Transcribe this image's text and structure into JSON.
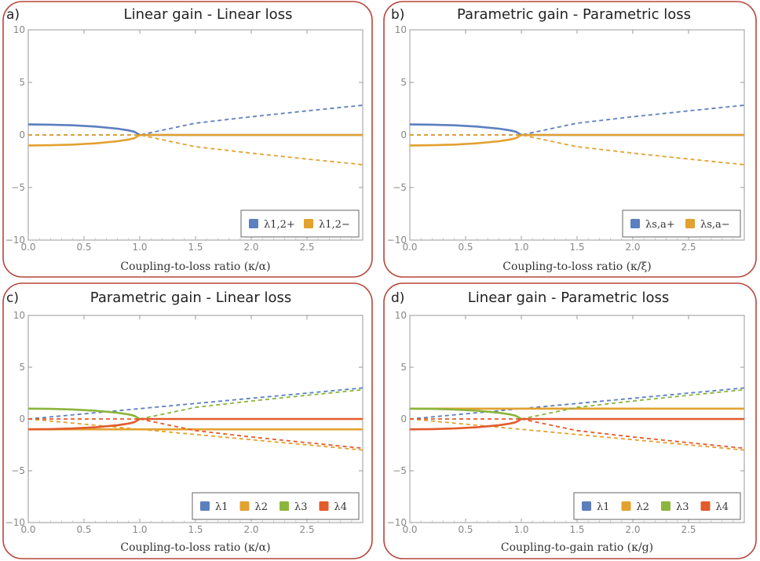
{
  "colors": {
    "blue": "#5b7fbf",
    "orange": "#e3a12f",
    "green": "#8bb53c",
    "red": "#e25b2c",
    "frame": "#b5473a"
  },
  "chart_data": [
    {
      "type": "line",
      "panel_label": "a)",
      "title": "Linear gain - Linear loss",
      "xlabel": "Coupling-to-loss ratio (κ/α)",
      "ylabel": "",
      "xlim": [
        0,
        3
      ],
      "ylim": [
        -10,
        10
      ],
      "x_ticks": [
        0,
        0.5,
        1,
        1.5,
        2,
        2.5
      ],
      "x_tick_labels": [
        "0.0",
        "0.5",
        "1.0",
        "1.5",
        "2.0",
        "2.5"
      ],
      "y_ticks": [
        -10,
        -5,
        0,
        5,
        10
      ],
      "y_tick_labels": [
        "−10",
        "−5",
        "0",
        "5",
        "10"
      ],
      "legend": {
        "position": "bottom-right",
        "entries": [
          {
            "label": "λ1,2+",
            "color": "blue"
          },
          {
            "label": "λ1,2−",
            "color": "orange"
          }
        ]
      },
      "series": [
        {
          "name": "λ1,2+",
          "color": "blue",
          "style": "solid",
          "points": [
            [
              0,
              1.0
            ],
            [
              0.2,
              0.98
            ],
            [
              0.4,
              0.917
            ],
            [
              0.6,
              0.8
            ],
            [
              0.8,
              0.6
            ],
            [
              0.9,
              0.436
            ],
            [
              0.95,
              0.312
            ],
            [
              1.0,
              0
            ]
          ]
        },
        {
          "name": "λ1,2+",
          "color": "blue",
          "style": "dashed",
          "points": [
            [
              0,
              0
            ],
            [
              1.0,
              0
            ],
            [
              1.5,
              1.118
            ],
            [
              2.0,
              1.732
            ],
            [
              2.5,
              2.291
            ],
            [
              3.0,
              2.828
            ]
          ]
        },
        {
          "name": "λ1,2+",
          "color": "blue",
          "style": "solid",
          "points": [
            [
              1.0,
              0
            ],
            [
              3.0,
              0
            ]
          ]
        },
        {
          "name": "λ1,2−",
          "color": "orange",
          "style": "solid",
          "points": [
            [
              0,
              -1.0
            ],
            [
              0.2,
              -0.98
            ],
            [
              0.4,
              -0.917
            ],
            [
              0.6,
              -0.8
            ],
            [
              0.8,
              -0.6
            ],
            [
              0.9,
              -0.436
            ],
            [
              0.95,
              -0.312
            ],
            [
              1.0,
              0
            ]
          ]
        },
        {
          "name": "λ1,2−",
          "color": "orange",
          "style": "dashed",
          "points": [
            [
              0,
              0
            ],
            [
              1.0,
              0
            ],
            [
              1.5,
              -1.118
            ],
            [
              2.0,
              -1.732
            ],
            [
              2.5,
              -2.291
            ],
            [
              3.0,
              -2.828
            ]
          ]
        },
        {
          "name": "λ1,2−",
          "color": "orange",
          "style": "solid",
          "points": [
            [
              1.0,
              0
            ],
            [
              3.0,
              0
            ]
          ]
        }
      ]
    },
    {
      "type": "line",
      "panel_label": "b)",
      "title": "Parametric gain - Parametric loss",
      "xlabel": "Coupling-to-loss ratio (κ/ξ)",
      "ylabel": "",
      "xlim": [
        0,
        3
      ],
      "ylim": [
        -10,
        10
      ],
      "x_ticks": [
        0,
        0.5,
        1,
        1.5,
        2,
        2.5
      ],
      "x_tick_labels": [
        "0.0",
        "0.5",
        "1.0",
        "1.5",
        "2.0",
        "2.5"
      ],
      "y_ticks": [
        -10,
        -5,
        0,
        5,
        10
      ],
      "y_tick_labels": [
        "−10",
        "−5",
        "0",
        "5",
        "10"
      ],
      "legend": {
        "position": "bottom-right",
        "entries": [
          {
            "label": "λs,a+",
            "color": "blue"
          },
          {
            "label": "λs,a−",
            "color": "orange"
          }
        ]
      },
      "series": [
        {
          "name": "λs,a+",
          "color": "blue",
          "style": "solid",
          "points": [
            [
              0,
              1.0
            ],
            [
              0.2,
              0.98
            ],
            [
              0.4,
              0.917
            ],
            [
              0.6,
              0.8
            ],
            [
              0.8,
              0.6
            ],
            [
              0.9,
              0.436
            ],
            [
              0.95,
              0.312
            ],
            [
              1.0,
              0
            ]
          ]
        },
        {
          "name": "λs,a+",
          "color": "blue",
          "style": "dashed",
          "points": [
            [
              0,
              0
            ],
            [
              1.0,
              0
            ],
            [
              1.5,
              1.118
            ],
            [
              2.0,
              1.732
            ],
            [
              2.5,
              2.291
            ],
            [
              3.0,
              2.828
            ]
          ]
        },
        {
          "name": "λs,a+",
          "color": "blue",
          "style": "solid",
          "points": [
            [
              1.0,
              0
            ],
            [
              3.0,
              0
            ]
          ]
        },
        {
          "name": "λs,a−",
          "color": "orange",
          "style": "solid",
          "points": [
            [
              0,
              -1.0
            ],
            [
              0.2,
              -0.98
            ],
            [
              0.4,
              -0.917
            ],
            [
              0.6,
              -0.8
            ],
            [
              0.8,
              -0.6
            ],
            [
              0.9,
              -0.436
            ],
            [
              0.95,
              -0.312
            ],
            [
              1.0,
              0
            ]
          ]
        },
        {
          "name": "λs,a−",
          "color": "orange",
          "style": "dashed",
          "points": [
            [
              0,
              0
            ],
            [
              1.0,
              0
            ],
            [
              1.5,
              -1.118
            ],
            [
              2.0,
              -1.732
            ],
            [
              2.5,
              -2.291
            ],
            [
              3.0,
              -2.828
            ]
          ]
        },
        {
          "name": "λs,a−",
          "color": "orange",
          "style": "solid",
          "points": [
            [
              1.0,
              0
            ],
            [
              3.0,
              0
            ]
          ]
        }
      ]
    },
    {
      "type": "line",
      "panel_label": "c)",
      "title": "Parametric gain - Linear loss",
      "xlabel": "Coupling-to-loss ratio (κ/α)",
      "ylabel": "",
      "xlim": [
        0,
        3
      ],
      "ylim": [
        -10,
        10
      ],
      "x_ticks": [
        0,
        0.5,
        1,
        1.5,
        2,
        2.5
      ],
      "x_tick_labels": [
        "0.0",
        "0.5",
        "1.0",
        "1.5",
        "2.0",
        "2.5"
      ],
      "y_ticks": [
        -10,
        -5,
        0,
        5,
        10
      ],
      "y_tick_labels": [
        "−10",
        "−5",
        "0",
        "5",
        "10"
      ],
      "legend": {
        "position": "bottom-right",
        "entries": [
          {
            "label": "λ1",
            "color": "blue"
          },
          {
            "label": "λ2",
            "color": "orange"
          },
          {
            "label": "λ3",
            "color": "green"
          },
          {
            "label": "λ4",
            "color": "red"
          }
        ]
      },
      "series": [
        {
          "name": "λ1",
          "color": "blue",
          "style": "dashed",
          "points": [
            [
              0,
              0
            ],
            [
              0.5,
              0.5
            ],
            [
              1.0,
              1.0
            ],
            [
              1.5,
              1.5
            ],
            [
              2.0,
              2.0
            ],
            [
              2.5,
              2.5
            ],
            [
              3.0,
              3.0
            ]
          ]
        },
        {
          "name": "λ2",
          "color": "orange",
          "style": "dashed",
          "points": [
            [
              0,
              0
            ],
            [
              0.5,
              -0.5
            ],
            [
              1.0,
              -1.0
            ],
            [
              1.5,
              -1.5
            ],
            [
              2.0,
              -2.0
            ],
            [
              2.5,
              -2.5
            ],
            [
              3.0,
              -3.0
            ]
          ]
        },
        {
          "name": "λ2",
          "color": "orange",
          "style": "solid",
          "points": [
            [
              0,
              -1.0
            ],
            [
              3.0,
              -1.0
            ]
          ]
        },
        {
          "name": "λ3",
          "color": "green",
          "style": "solid",
          "points": [
            [
              0,
              1.0
            ],
            [
              0.2,
              0.98
            ],
            [
              0.4,
              0.917
            ],
            [
              0.6,
              0.8
            ],
            [
              0.8,
              0.6
            ],
            [
              0.9,
              0.436
            ],
            [
              0.95,
              0.312
            ],
            [
              1.0,
              0
            ]
          ]
        },
        {
          "name": "λ3",
          "color": "green",
          "style": "dashed",
          "points": [
            [
              1.0,
              0
            ],
            [
              1.5,
              1.118
            ],
            [
              2.0,
              1.732
            ],
            [
              2.5,
              2.291
            ],
            [
              3.0,
              2.828
            ]
          ]
        },
        {
          "name": "λ4",
          "color": "red",
          "style": "solid",
          "points": [
            [
              0,
              -1.0
            ],
            [
              0.2,
              -0.98
            ],
            [
              0.4,
              -0.917
            ],
            [
              0.6,
              -0.8
            ],
            [
              0.8,
              -0.6
            ],
            [
              0.9,
              -0.436
            ],
            [
              0.95,
              -0.312
            ],
            [
              1.0,
              0
            ]
          ]
        },
        {
          "name": "λ4",
          "color": "red",
          "style": "dashed",
          "points": [
            [
              0,
              0
            ],
            [
              1.0,
              0
            ]
          ]
        },
        {
          "name": "λ4",
          "color": "red",
          "style": "dashed",
          "points": [
            [
              1.0,
              0
            ],
            [
              1.5,
              -1.118
            ],
            [
              2.0,
              -1.732
            ],
            [
              2.5,
              -2.291
            ],
            [
              3.0,
              -2.828
            ]
          ]
        },
        {
          "name": "λ4",
          "color": "red",
          "style": "solid",
          "points": [
            [
              1.0,
              0
            ],
            [
              3.0,
              0
            ]
          ]
        }
      ]
    },
    {
      "type": "line",
      "panel_label": "d)",
      "title": "Linear gain - Parametric loss",
      "xlabel": "Coupling-to-gain ratio (κ/g)",
      "ylabel": "",
      "xlim": [
        0,
        3
      ],
      "ylim": [
        -10,
        10
      ],
      "x_ticks": [
        0,
        0.5,
        1,
        1.5,
        2,
        2.5
      ],
      "x_tick_labels": [
        "0.0",
        "0.5",
        "1.0",
        "1.5",
        "2.0",
        "2.5"
      ],
      "y_ticks": [
        -10,
        -5,
        0,
        5,
        10
      ],
      "y_tick_labels": [
        "−10",
        "−5",
        "0",
        "5",
        "10"
      ],
      "legend": {
        "position": "bottom-right",
        "entries": [
          {
            "label": "λ1",
            "color": "blue"
          },
          {
            "label": "λ2",
            "color": "orange"
          },
          {
            "label": "λ3",
            "color": "green"
          },
          {
            "label": "λ4",
            "color": "red"
          }
        ]
      },
      "series": [
        {
          "name": "λ1",
          "color": "blue",
          "style": "dashed",
          "points": [
            [
              0,
              0
            ],
            [
              0.5,
              0.5
            ],
            [
              1.0,
              1.0
            ],
            [
              1.5,
              1.5
            ],
            [
              2.0,
              2.0
            ],
            [
              2.5,
              2.5
            ],
            [
              3.0,
              3.0
            ]
          ]
        },
        {
          "name": "λ2",
          "color": "orange",
          "style": "dashed",
          "points": [
            [
              0,
              0
            ],
            [
              0.5,
              -0.5
            ],
            [
              1.0,
              -1.0
            ],
            [
              1.5,
              -1.5
            ],
            [
              2.0,
              -2.0
            ],
            [
              2.5,
              -2.5
            ],
            [
              3.0,
              -3.0
            ]
          ]
        },
        {
          "name": "λ2",
          "color": "orange",
          "style": "solid",
          "points": [
            [
              0,
              1.0
            ],
            [
              3.0,
              1.0
            ]
          ]
        },
        {
          "name": "λ3",
          "color": "green",
          "style": "solid",
          "points": [
            [
              0,
              1.0
            ],
            [
              0.2,
              0.98
            ],
            [
              0.4,
              0.917
            ],
            [
              0.6,
              0.8
            ],
            [
              0.8,
              0.6
            ],
            [
              0.9,
              0.436
            ],
            [
              0.95,
              0.312
            ],
            [
              1.0,
              0
            ]
          ]
        },
        {
          "name": "λ3",
          "color": "green",
          "style": "dashed",
          "points": [
            [
              1.0,
              0
            ],
            [
              1.5,
              1.118
            ],
            [
              2.0,
              1.732
            ],
            [
              2.5,
              2.291
            ],
            [
              3.0,
              2.828
            ]
          ]
        },
        {
          "name": "λ4",
          "color": "red",
          "style": "solid",
          "points": [
            [
              0,
              -1.0
            ],
            [
              0.2,
              -0.98
            ],
            [
              0.4,
              -0.917
            ],
            [
              0.6,
              -0.8
            ],
            [
              0.8,
              -0.6
            ],
            [
              0.9,
              -0.436
            ],
            [
              0.95,
              -0.312
            ],
            [
              1.0,
              0
            ]
          ]
        },
        {
          "name": "λ4",
          "color": "red",
          "style": "dashed",
          "points": [
            [
              0,
              0
            ],
            [
              1.0,
              0
            ]
          ]
        },
        {
          "name": "λ4",
          "color": "red",
          "style": "dashed",
          "points": [
            [
              1.0,
              0
            ],
            [
              1.5,
              -1.118
            ],
            [
              2.0,
              -1.732
            ],
            [
              2.5,
              -2.291
            ],
            [
              3.0,
              -2.828
            ]
          ]
        },
        {
          "name": "λ4",
          "color": "red",
          "style": "solid",
          "points": [
            [
              1.0,
              0
            ],
            [
              3.0,
              0
            ]
          ]
        }
      ]
    }
  ]
}
